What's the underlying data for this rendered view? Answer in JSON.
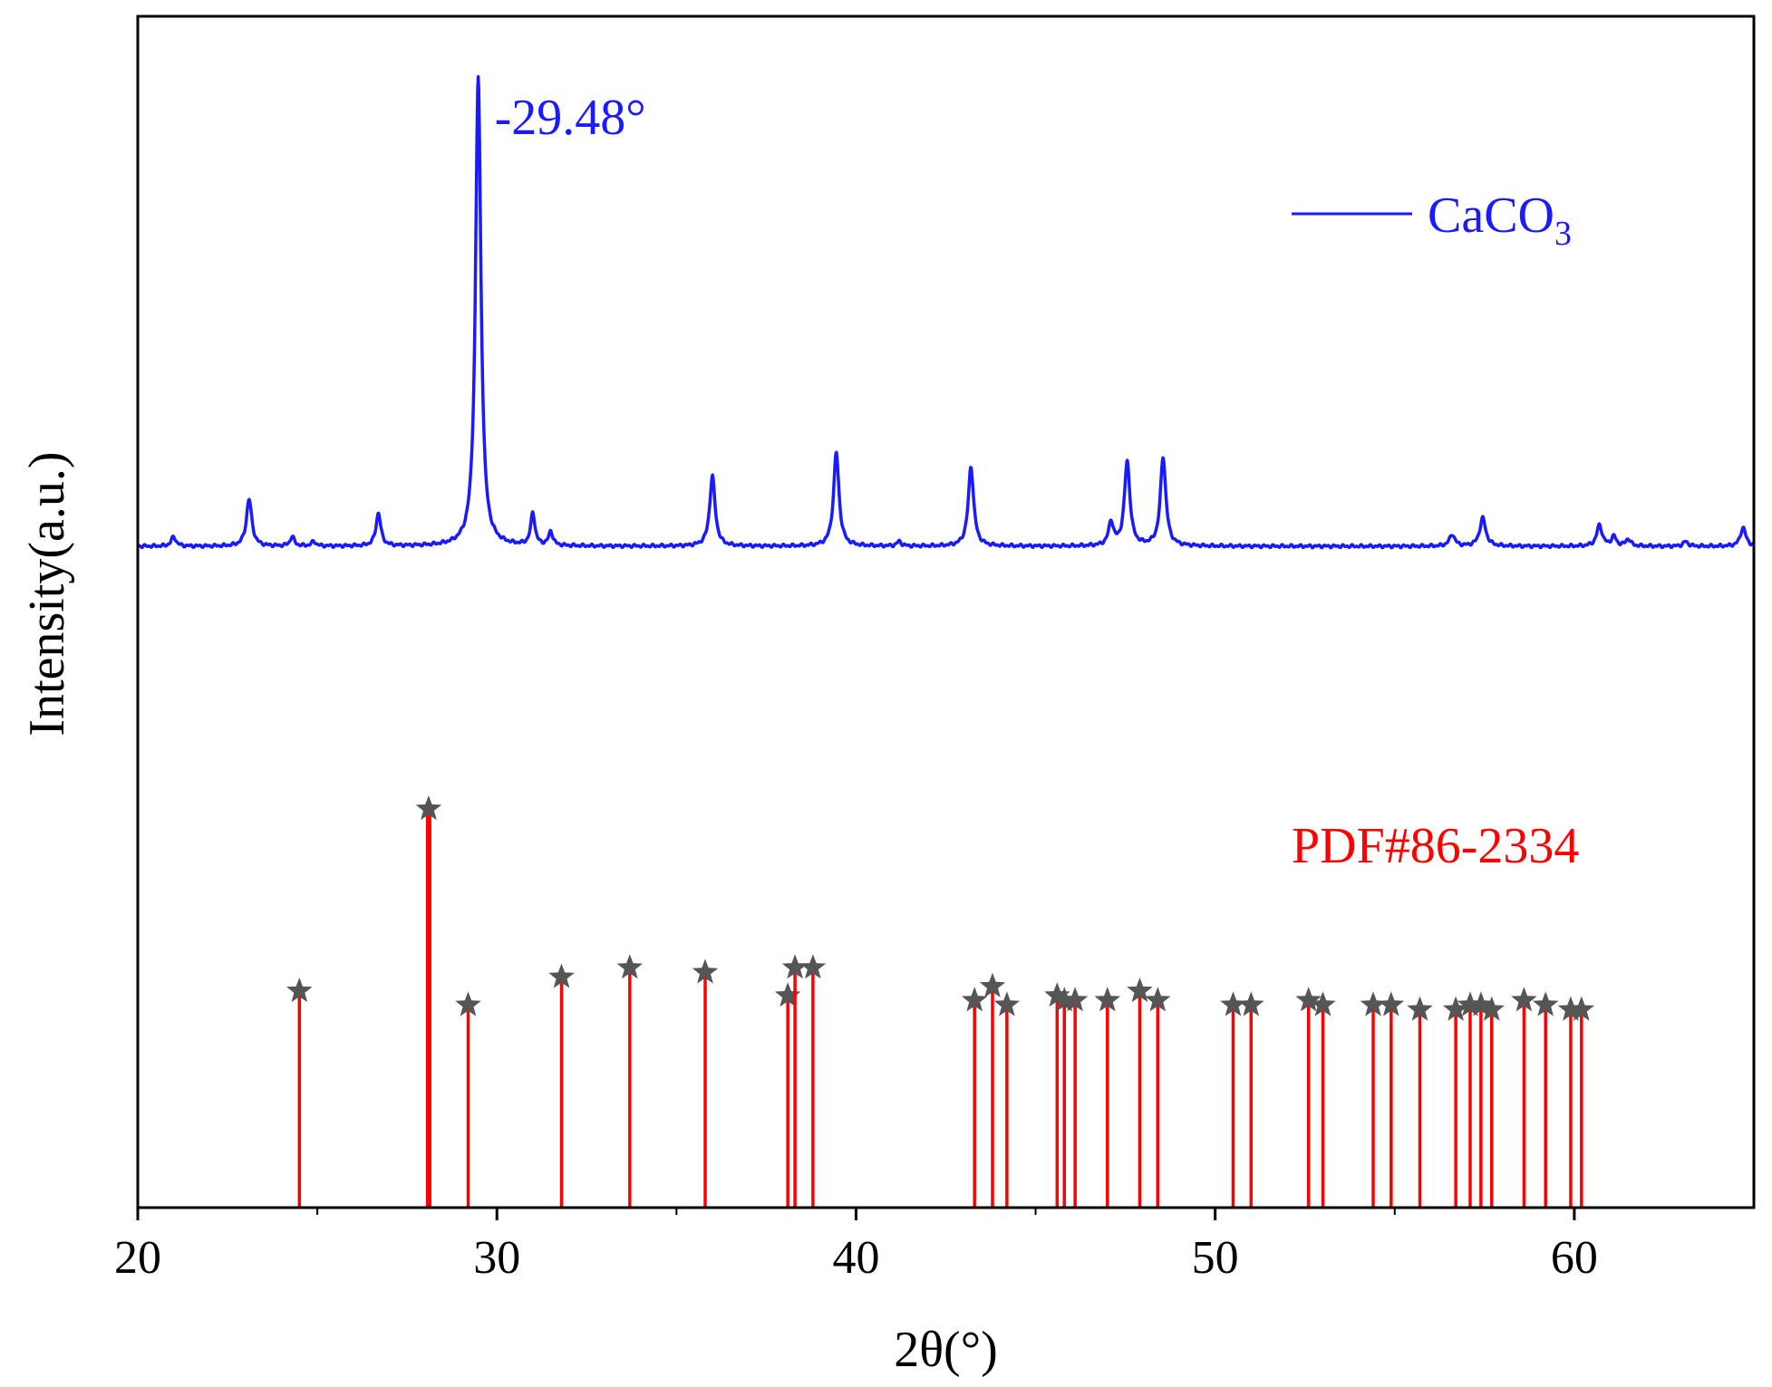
{
  "chart_data": {
    "type": "line",
    "xlabel": "2θ(°)",
    "ylabel": "Intensity(a.u.)",
    "xlim": [
      20,
      65
    ],
    "xticks": [
      20,
      30,
      40,
      50,
      60
    ],
    "grid": false,
    "series": [
      {
        "name": "CaCO",
        "name_subscript": "3",
        "color": "#1a1aff",
        "baseline": 0,
        "peaks": [
          {
            "x": 21.0,
            "h": 2,
            "w": 0.08
          },
          {
            "x": 23.1,
            "h": 10,
            "w": 0.09
          },
          {
            "x": 24.3,
            "h": 2,
            "w": 0.07
          },
          {
            "x": 24.9,
            "h": 1,
            "w": 0.07
          },
          {
            "x": 26.7,
            "h": 7,
            "w": 0.08
          },
          {
            "x": 29.48,
            "h": 100,
            "w": 0.09
          },
          {
            "x": 31.0,
            "h": 7,
            "w": 0.07
          },
          {
            "x": 31.5,
            "h": 3,
            "w": 0.07
          },
          {
            "x": 36.0,
            "h": 15,
            "w": 0.09
          },
          {
            "x": 39.45,
            "h": 20,
            "w": 0.09
          },
          {
            "x": 41.2,
            "h": 1,
            "w": 0.07
          },
          {
            "x": 43.2,
            "h": 17,
            "w": 0.09
          },
          {
            "x": 47.1,
            "h": 5,
            "w": 0.08
          },
          {
            "x": 47.55,
            "h": 18,
            "w": 0.09
          },
          {
            "x": 48.55,
            "h": 19,
            "w": 0.09
          },
          {
            "x": 56.6,
            "h": 2.5,
            "w": 0.09
          },
          {
            "x": 57.45,
            "h": 6,
            "w": 0.1
          },
          {
            "x": 60.7,
            "h": 4.5,
            "w": 0.09
          },
          {
            "x": 61.1,
            "h": 2,
            "w": 0.08
          },
          {
            "x": 61.5,
            "h": 1.5,
            "w": 0.08
          },
          {
            "x": 63.1,
            "h": 1,
            "w": 0.08
          },
          {
            "x": 64.7,
            "h": 4,
            "w": 0.09
          }
        ]
      },
      {
        "name": "PDF#86-2334",
        "type": "stick",
        "color": "#ff0000",
        "marker": "star",
        "marker_color": "#555555",
        "sticks": [
          {
            "x": 24.5,
            "h": 46
          },
          {
            "x": 28.1,
            "h": 85
          },
          {
            "x": 29.2,
            "h": 43
          },
          {
            "x": 31.8,
            "h": 49
          },
          {
            "x": 33.7,
            "h": 51
          },
          {
            "x": 35.8,
            "h": 50
          },
          {
            "x": 38.1,
            "h": 45
          },
          {
            "x": 38.3,
            "h": 51
          },
          {
            "x": 38.8,
            "h": 51
          },
          {
            "x": 43.3,
            "h": 44
          },
          {
            "x": 43.8,
            "h": 47
          },
          {
            "x": 44.2,
            "h": 43
          },
          {
            "x": 45.6,
            "h": 45
          },
          {
            "x": 45.8,
            "h": 44
          },
          {
            "x": 46.1,
            "h": 44
          },
          {
            "x": 47.0,
            "h": 44
          },
          {
            "x": 47.9,
            "h": 46
          },
          {
            "x": 48.4,
            "h": 44
          },
          {
            "x": 50.5,
            "h": 43
          },
          {
            "x": 51.0,
            "h": 43
          },
          {
            "x": 52.6,
            "h": 44
          },
          {
            "x": 53.0,
            "h": 43
          },
          {
            "x": 54.4,
            "h": 43
          },
          {
            "x": 54.9,
            "h": 43
          },
          {
            "x": 55.7,
            "h": 42
          },
          {
            "x": 56.7,
            "h": 42
          },
          {
            "x": 57.1,
            "h": 43
          },
          {
            "x": 57.4,
            "h": 43
          },
          {
            "x": 57.7,
            "h": 42
          },
          {
            "x": 58.6,
            "h": 44
          },
          {
            "x": 59.2,
            "h": 43
          },
          {
            "x": 59.9,
            "h": 42
          },
          {
            "x": 60.2,
            "h": 42
          }
        ]
      }
    ],
    "annotations": [
      {
        "text": "-29.48°",
        "x": 29.48,
        "series": 0,
        "color": "#1a1aff"
      }
    ],
    "legend": "top-right"
  }
}
